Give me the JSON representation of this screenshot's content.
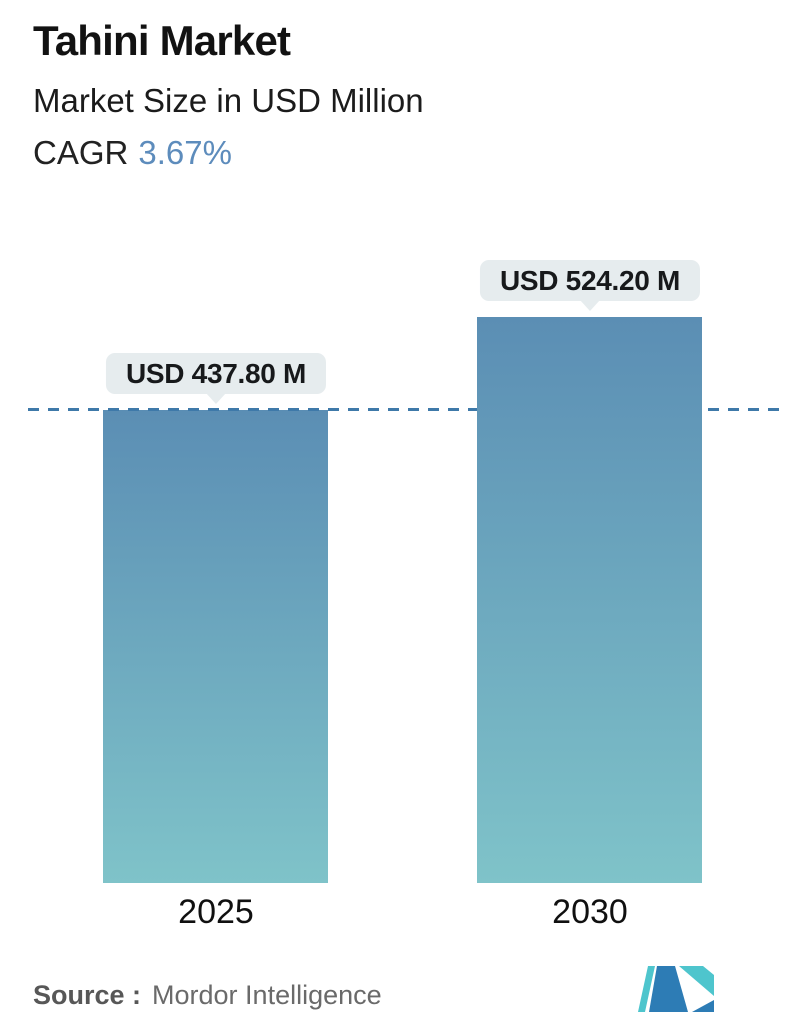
{
  "header": {
    "title": "Tahini Market",
    "subtitle": "Market Size in USD Million",
    "cagr_label": "CAGR",
    "cagr_value": "3.67%"
  },
  "chart_data": {
    "type": "bar",
    "title": "Tahini Market",
    "subtitle": "Market Size in USD Million",
    "unit": "USD Million",
    "cagr_percent": 3.67,
    "categories": [
      "2025",
      "2030"
    ],
    "values": [
      437.8,
      524.2
    ],
    "value_labels": [
      "USD 437.80 M",
      "USD 524.20 M"
    ],
    "reference_line_value": 437.8,
    "reference_line_style": "dashed",
    "ylim": [
      0,
      560
    ],
    "grid": false,
    "legend": false,
    "xlabel": "",
    "ylabel": ""
  },
  "bars": [
    {
      "category": "2025",
      "label": "USD 437.80 M",
      "value": 437.8
    },
    {
      "category": "2030",
      "label": "USD 524.20 M",
      "value": 524.2
    }
  ],
  "footer": {
    "source_label": "Source :",
    "source_name": "Mordor Intelligence",
    "logo": "mordor-intelligence-logo"
  },
  "colors": {
    "bar_gradient_top": "#5b8eb4",
    "bar_gradient_bottom": "#7fc3c9",
    "dashed_line": "#3e79a9",
    "tooltip_bg": "#e6ecee",
    "tooltip_text": "#17191b",
    "cagr_accent": "#5d8cbc",
    "title_text": "#121212",
    "source_text": "#5f5f5f",
    "logo_teal": "#4ec5cd",
    "logo_blue": "#2d7cb5"
  }
}
